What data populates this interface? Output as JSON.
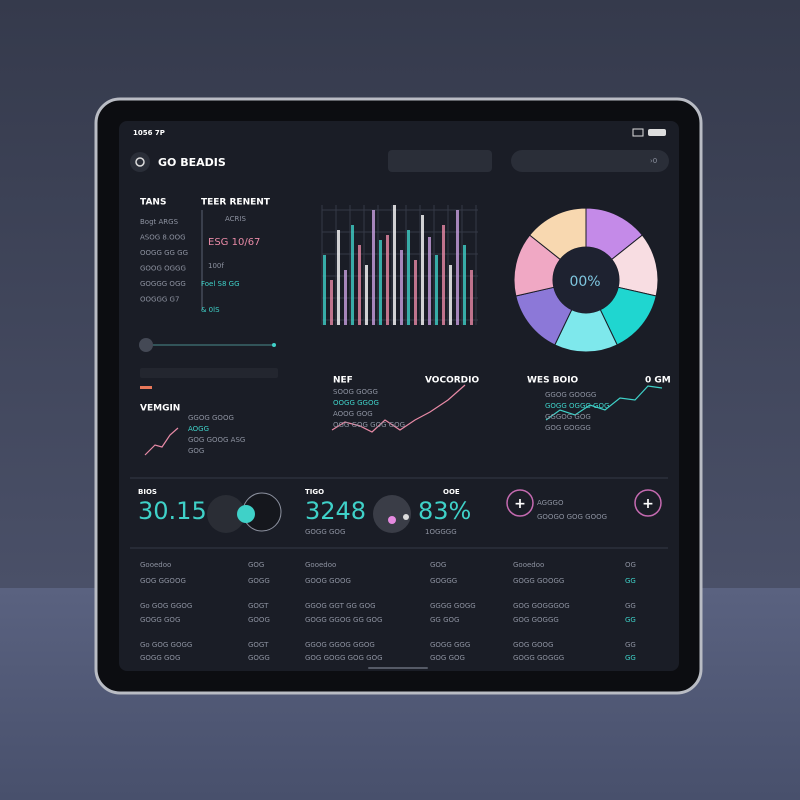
{
  "status": {
    "time": "1056 7P"
  },
  "header": {
    "title": "GO BEADIS",
    "search": "›0"
  },
  "panel": {
    "col1": "TANS",
    "col2": "TEER RENENT",
    "left_rows": [
      "Bogt ARGS",
      "ASOG 8.OOG",
      "OOGG GG GG",
      "GOOG OGGG",
      "GOGGG OGG",
      "OOGGG G7"
    ],
    "right_rows": [
      "ACRIS",
      "ESG 10/67",
      "100f",
      "Foel S8 GG",
      "& 0lS"
    ]
  },
  "donut": {
    "label": "00%"
  },
  "trends": [
    {
      "title": "VEMGIN",
      "rows": [
        "GGOG GOOG",
        "AOGG",
        "GOG GOOG ASG",
        "GOG"
      ]
    },
    {
      "title": "NEF",
      "title2": "VOCORDIO",
      "rows": [
        "SOOG GOGG",
        "OOGG GGOG",
        "AOOG GOG",
        "OGG GOG GOG GOG"
      ]
    },
    {
      "title": "WES BOIO",
      "title2": "0 GM",
      "rows": [
        "GGOG GOOGG",
        "GOGG OGGG GOG",
        "GGGOG GOG",
        "GOG GOGGG"
      ]
    }
  ],
  "kpis": [
    {
      "label": "BIOS",
      "value": "30.15"
    },
    {
      "label": "TIGO",
      "value": "3248",
      "label2": "OOE",
      "value2": "83%",
      "sub": "GOGG GOG",
      "sub2": "1OGGGG"
    },
    {
      "label": "AGGGO",
      "sub": "GOOGO GOG GOOG"
    }
  ],
  "table": {
    "columns": [
      {
        "rows": [
          [
            "Gooedoo",
            "GOG"
          ],
          [
            "GOG GGOOG",
            "GOGG"
          ],
          [
            "Go GOG GGOG",
            "GOGT"
          ],
          [
            "GOGG GOG",
            "GOOG"
          ],
          [
            "Go GOG GOGG",
            "GOGT"
          ],
          [
            "GOGG GOG",
            "GOGG"
          ]
        ]
      },
      {
        "rows": [
          [
            "Gooedoo",
            "GOG"
          ],
          [
            "GOOG GOOG",
            "GOGGG"
          ],
          [
            "GGOG GGT  GG GOG",
            "GGGG GOGG"
          ],
          [
            "GOGG GGOG  GG GOG",
            "GG GOG"
          ],
          [
            "GGOG GGOG  GGOG",
            "GOGG GGG"
          ],
          [
            "GOG GOGG  GOG GOG",
            "GOG GOG"
          ]
        ]
      },
      {
        "rows": [
          [
            "Gooedoo",
            "OG"
          ],
          [
            "GOGG GOOGG",
            "GG"
          ],
          [
            "GOG GOGGGOG",
            "GG"
          ],
          [
            "GOG GOGGG",
            "GG"
          ],
          [
            "GOG GOOG",
            "GG"
          ],
          [
            "GOGG GOGGG",
            "GG"
          ]
        ]
      }
    ]
  }
}
